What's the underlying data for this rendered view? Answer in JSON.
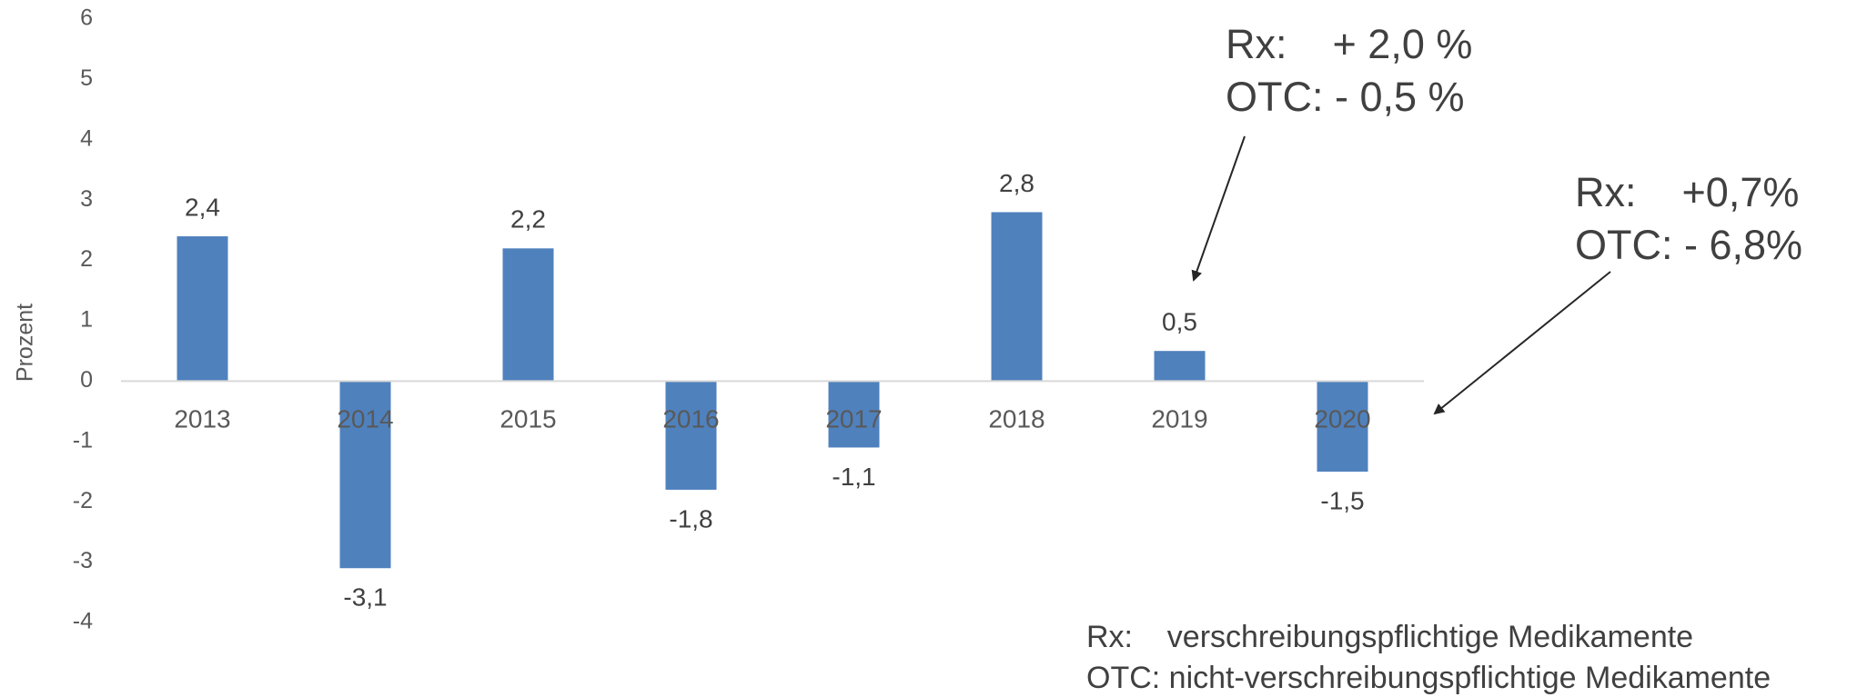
{
  "chart_data": {
    "type": "bar",
    "y_label": "Prozent",
    "categories": [
      "2013",
      "2014",
      "2015",
      "2016",
      "2017",
      "2018",
      "2019",
      "2020"
    ],
    "values": [
      2.4,
      -3.1,
      2.2,
      -1.8,
      -1.1,
      2.8,
      0.5,
      -1.5
    ],
    "value_labels": [
      "2,4",
      "-3,1",
      "2,2",
      "-1,8",
      "-1,1",
      "2,8",
      "0,5",
      "-1,5"
    ],
    "color": "#4f81bd",
    "ylim": [
      -4,
      6
    ],
    "yticks": [
      -4,
      -3,
      -2,
      -1,
      0,
      1,
      2,
      3,
      4,
      5,
      6
    ],
    "grid": false,
    "annotations": [
      {
        "lines": [
          "Rx:    + 2,0 %",
          "OTC: - 0,5 %"
        ]
      },
      {
        "lines": [
          "Rx:    +0,7%",
          "OTC: - 6,8%"
        ]
      }
    ],
    "notes": [
      "Rx:    verschreibungspflichtige Medikamente",
      "OTC: nicht-verschreibungspflichtige Medikamente"
    ]
  }
}
